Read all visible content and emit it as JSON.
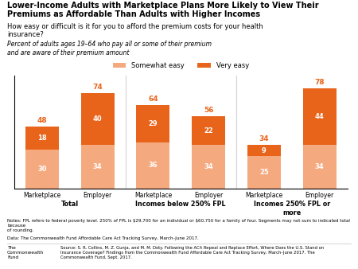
{
  "chart_data": {
    "type": "bar",
    "stacked": true,
    "title": "Lower-Income Adults with Marketplace Plans More Likely to View Their\nPremiums as Affordable Than Adults with Higher Incomes",
    "question": "How easy or difficult is it for you to afford the premium costs for your health\ninsurance?",
    "subtitle": "Percent of adults ages 19–64 who pay all or some of their premium\nand are aware of their premium amount",
    "categories": [
      "Marketplace",
      "Employer",
      "Marketplace",
      "Employer",
      "Marketplace",
      "Employer"
    ],
    "groups": [
      "Total",
      "Incomes below 250% FPL",
      "Incomes 250% FPL or\nmore"
    ],
    "series": [
      {
        "name": "Somewhat easy",
        "color": "#F5A97F",
        "values": [
          30,
          34,
          36,
          34,
          25,
          34
        ]
      },
      {
        "name": "Very easy",
        "color": "#E8641A",
        "values": [
          18,
          40,
          29,
          22,
          9,
          44
        ]
      }
    ],
    "totals": [
      48,
      74,
      64,
      56,
      34,
      78
    ],
    "totals_color": "#E8641A",
    "data_labels": true,
    "legend": "upper center",
    "ylim": [
      0,
      88
    ],
    "yticks": [],
    "tick_labels": "x",
    "notes": [
      "Notes: FPL refers to federal poverty level. 250% of FPL is $29,700 for an individual or $60,750 for a family of four. Segments may not sum to indicated total because",
      "of rounding."
    ],
    "data_source": "Data: The Commonwealth Fund Affordable Care Act Tracking Survey, March–June 2017.",
    "brand": "The\nCommonwealth\nFund",
    "source": "Source: S. R. Collins, M. Z. Gunja, and M. M. Doty. Following the ACA Repeal and Replace Effort, Where Does the U.S. Stand on\nInsurance Coverage? Findings from the Commonwealth Fund Affordable Care Act Tracking Survey, March–June 2017. The\nCommonwealth Fund, Sept. 2017."
  }
}
